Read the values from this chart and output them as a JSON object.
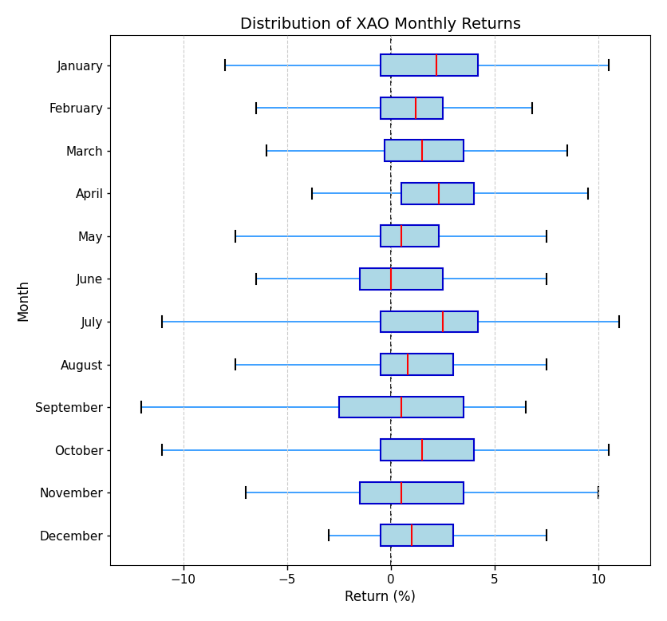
{
  "title": "Distribution of XAO Monthly Returns",
  "xlabel": "Return (%)",
  "ylabel": "Month",
  "months": [
    "January",
    "February",
    "March",
    "April",
    "May",
    "June",
    "July",
    "August",
    "September",
    "October",
    "November",
    "December"
  ],
  "box_data": [
    {
      "month": "January",
      "whislo": -8.0,
      "q1": -0.5,
      "med": 2.2,
      "q3": 4.2,
      "whishi": 10.5
    },
    {
      "month": "February",
      "whislo": -6.5,
      "q1": -0.5,
      "med": 1.2,
      "q3": 2.5,
      "whishi": 6.8
    },
    {
      "month": "March",
      "whislo": -6.0,
      "q1": -0.3,
      "med": 1.5,
      "q3": 3.5,
      "whishi": 8.5
    },
    {
      "month": "April",
      "whislo": -3.8,
      "q1": 0.5,
      "med": 2.3,
      "q3": 4.0,
      "whishi": 9.5
    },
    {
      "month": "May",
      "whislo": -7.5,
      "q1": -0.5,
      "med": 0.5,
      "q3": 2.3,
      "whishi": 7.5
    },
    {
      "month": "June",
      "whislo": -6.5,
      "q1": -1.5,
      "med": 0.0,
      "q3": 2.5,
      "whishi": 7.5
    },
    {
      "month": "July",
      "whislo": -11.0,
      "q1": -0.5,
      "med": 2.5,
      "q3": 4.2,
      "whishi": 11.0
    },
    {
      "month": "August",
      "whislo": -7.5,
      "q1": -0.5,
      "med": 0.8,
      "q3": 3.0,
      "whishi": 7.5
    },
    {
      "month": "September",
      "whislo": -12.0,
      "q1": -2.5,
      "med": 0.5,
      "q3": 3.5,
      "whishi": 6.5
    },
    {
      "month": "October",
      "whislo": -11.0,
      "q1": -0.5,
      "med": 1.5,
      "q3": 4.0,
      "whishi": 10.5
    },
    {
      "month": "November",
      "whislo": -7.0,
      "q1": -1.5,
      "med": 0.5,
      "q3": 3.5,
      "whishi": 10.0
    },
    {
      "month": "December",
      "whislo": -3.0,
      "q1": -0.5,
      "med": 1.0,
      "q3": 3.0,
      "whishi": 7.5
    }
  ],
  "xlim": [
    -13.5,
    12.5
  ],
  "xticks": [
    -10,
    -5,
    0,
    5,
    10
  ],
  "box_facecolor": "#add8e6",
  "box_edgecolor": "#0000cc",
  "median_color": "#ff0000",
  "whisker_color": "#1e90ff",
  "cap_color": "#000000",
  "grid_color": "#cccccc",
  "dashed_line_x": 0,
  "title_fontsize": 14,
  "label_fontsize": 12,
  "tick_fontsize": 11,
  "box_width": 0.5
}
